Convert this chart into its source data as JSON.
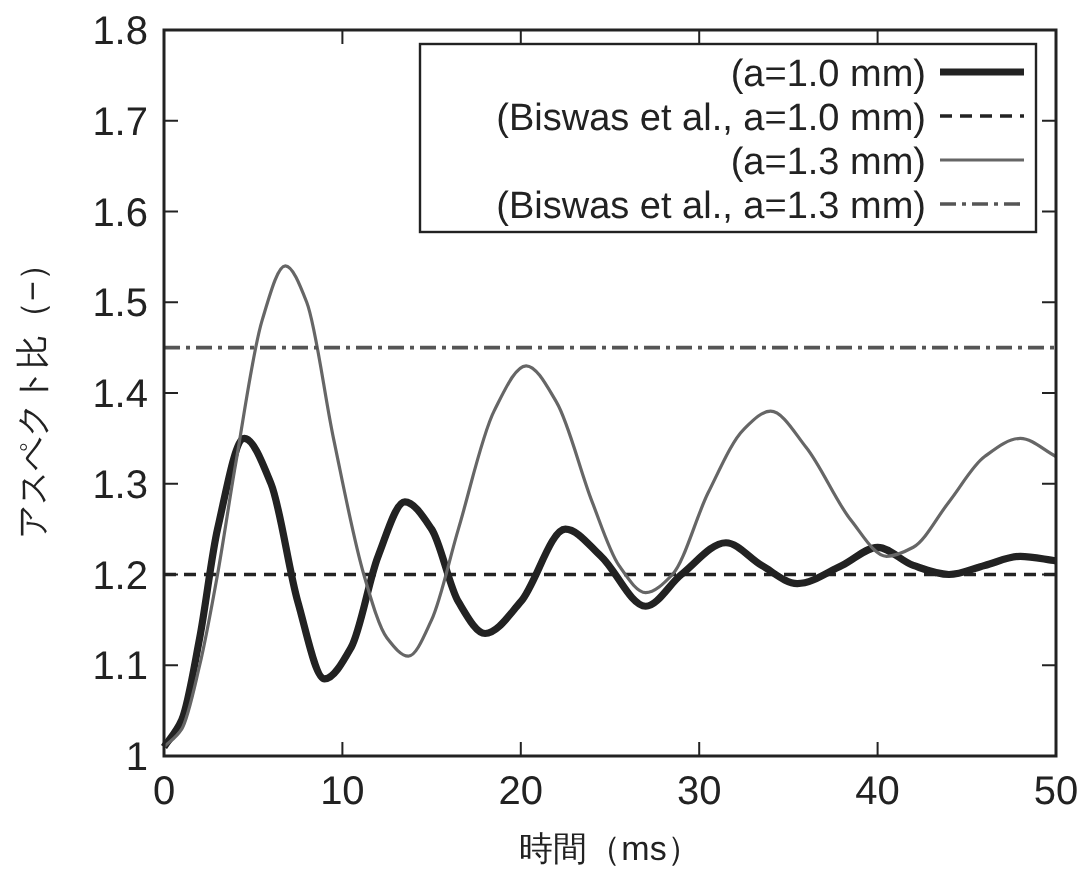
{
  "chart_data": {
    "type": "line",
    "xlabel": "時間（ms）",
    "ylabel": "アスペクト比（−）",
    "xlim": [
      0,
      50
    ],
    "xticks": [
      0,
      10,
      20,
      30,
      40,
      50
    ],
    "ylim": [
      1,
      1.8
    ],
    "yticks": [
      1,
      1.1,
      1.2,
      1.3,
      1.4,
      1.5,
      1.6,
      1.7,
      1.8
    ],
    "grid": false,
    "legend": "top right",
    "marker": "none",
    "series": [
      {
        "name": "(a=1.0 mm)",
        "color": "#222222",
        "line_style": "solid",
        "x": [
          0,
          1,
          2,
          3,
          4.5,
          6,
          7.5,
          9,
          10.5,
          12,
          13.5,
          15,
          16.5,
          18,
          20,
          22.5,
          24.5,
          27,
          29,
          31.5,
          33.5,
          35.5,
          38,
          40,
          42,
          44,
          46,
          48,
          50
        ],
        "values": [
          1.01,
          1.04,
          1.13,
          1.25,
          1.35,
          1.3,
          1.17,
          1.085,
          1.12,
          1.22,
          1.28,
          1.25,
          1.17,
          1.135,
          1.17,
          1.25,
          1.22,
          1.165,
          1.2,
          1.235,
          1.21,
          1.19,
          1.21,
          1.23,
          1.21,
          1.2,
          1.21,
          1.22,
          1.215
        ]
      },
      {
        "name": "(Biswas et al., a=1.0 mm)",
        "color": "#222222",
        "line_style": "dashed",
        "x": [
          0,
          50
        ],
        "values": [
          1.2,
          1.2
        ]
      },
      {
        "name": "(a=1.3 mm)",
        "color": "#666666",
        "line_style": "solid",
        "x": [
          0,
          1,
          2,
          3,
          4,
          5.5,
          6.8,
          8,
          9.5,
          11.2,
          12.5,
          13.7,
          15,
          16.5,
          18.5,
          20.3,
          22,
          24,
          25.5,
          27,
          28.5,
          30.5,
          32.5,
          34,
          36,
          38.5,
          40.5,
          42,
          44,
          46,
          48,
          50
        ],
        "values": [
          1.01,
          1.03,
          1.1,
          1.2,
          1.32,
          1.48,
          1.54,
          1.5,
          1.35,
          1.2,
          1.13,
          1.11,
          1.15,
          1.25,
          1.38,
          1.43,
          1.39,
          1.28,
          1.21,
          1.18,
          1.2,
          1.29,
          1.36,
          1.38,
          1.34,
          1.26,
          1.22,
          1.23,
          1.28,
          1.33,
          1.35,
          1.33
        ]
      },
      {
        "name": "(Biswas et al., a=1.3 mm)",
        "color": "#555555",
        "line_style": "dashdot",
        "x": [
          0,
          50
        ],
        "values": [
          1.45,
          1.45
        ]
      }
    ]
  }
}
